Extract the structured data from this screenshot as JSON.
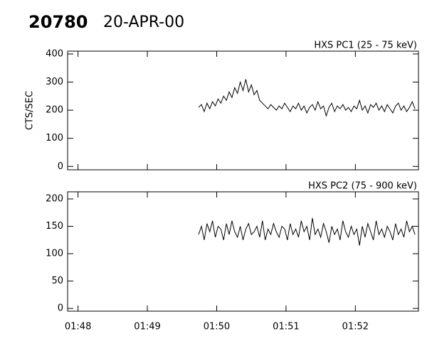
{
  "header": {
    "id": "20780",
    "date": "20-APR-00"
  },
  "chart_data": [
    {
      "type": "line",
      "title": "HXS PC1 (25 - 75 keV)",
      "y_label": "CTS/SEC",
      "color": "#000000",
      "x": [
        109.74,
        109.78,
        109.82,
        109.86,
        109.9,
        109.94,
        109.98,
        110.02,
        110.06,
        110.1,
        110.14,
        110.18,
        110.22,
        110.26,
        110.3,
        110.34,
        110.38,
        110.42,
        110.46,
        110.5,
        110.54,
        110.58,
        110.62,
        110.66,
        110.7,
        110.74,
        110.78,
        110.82,
        110.86,
        110.9,
        110.94,
        110.98,
        111.02,
        111.06,
        111.1,
        111.14,
        111.18,
        111.22,
        111.26,
        111.3,
        111.34,
        111.38,
        111.42,
        111.46,
        111.5,
        111.54,
        111.58,
        111.62,
        111.66,
        111.7,
        111.74,
        111.78,
        111.82,
        111.86,
        111.9,
        111.94,
        111.98,
        112.02,
        112.06,
        112.1,
        112.14,
        112.18,
        112.22,
        112.26,
        112.3,
        112.34,
        112.38,
        112.42,
        112.46,
        112.5,
        112.54,
        112.58,
        112.62,
        112.66,
        112.7,
        112.74,
        112.78,
        112.82,
        112.86
      ],
      "values": [
        210,
        220,
        195,
        225,
        205,
        230,
        215,
        240,
        225,
        250,
        235,
        265,
        245,
        280,
        260,
        300,
        270,
        310,
        265,
        290,
        255,
        270,
        235,
        225,
        215,
        205,
        220,
        210,
        200,
        215,
        205,
        225,
        210,
        195,
        215,
        205,
        225,
        200,
        215,
        190,
        210,
        220,
        200,
        230,
        205,
        215,
        180,
        210,
        225,
        195,
        215,
        205,
        220,
        200,
        210,
        195,
        215,
        205,
        235,
        200,
        215,
        190,
        220,
        210,
        225,
        200,
        215,
        195,
        220,
        205,
        190,
        215,
        225,
        200,
        215,
        195,
        210,
        230,
        205
      ],
      "xlim": [
        107.85,
        112.91
      ],
      "xticks": [
        108,
        109,
        110,
        111,
        112
      ],
      "ylim": [
        -12,
        410
      ],
      "yticks": [
        0,
        100,
        200,
        300,
        400
      ]
    },
    {
      "type": "line",
      "title": "HXS PC2 (75 - 900 keV)",
      "color": "#000000",
      "x": [
        109.74,
        109.78,
        109.82,
        109.86,
        109.9,
        109.94,
        109.98,
        110.02,
        110.06,
        110.1,
        110.14,
        110.18,
        110.22,
        110.26,
        110.3,
        110.34,
        110.38,
        110.42,
        110.46,
        110.5,
        110.54,
        110.58,
        110.62,
        110.66,
        110.7,
        110.74,
        110.78,
        110.82,
        110.86,
        110.9,
        110.94,
        110.98,
        111.02,
        111.06,
        111.1,
        111.14,
        111.18,
        111.22,
        111.26,
        111.3,
        111.34,
        111.38,
        111.42,
        111.46,
        111.5,
        111.54,
        111.58,
        111.62,
        111.66,
        111.7,
        111.74,
        111.78,
        111.82,
        111.86,
        111.9,
        111.94,
        111.98,
        112.02,
        112.06,
        112.1,
        112.14,
        112.18,
        112.22,
        112.26,
        112.3,
        112.34,
        112.38,
        112.42,
        112.46,
        112.5,
        112.54,
        112.58,
        112.62,
        112.66,
        112.7,
        112.74,
        112.78,
        112.82,
        112.86
      ],
      "values": [
        135,
        150,
        125,
        155,
        140,
        160,
        130,
        150,
        145,
        125,
        155,
        135,
        160,
        140,
        130,
        150,
        125,
        145,
        155,
        135,
        140,
        150,
        130,
        160,
        125,
        145,
        135,
        155,
        140,
        130,
        150,
        145,
        125,
        155,
        135,
        145,
        130,
        160,
        140,
        150,
        125,
        165,
        135,
        145,
        130,
        155,
        140,
        120,
        150,
        135,
        145,
        125,
        160,
        140,
        130,
        150,
        135,
        145,
        115,
        150,
        130,
        155,
        140,
        125,
        160,
        135,
        145,
        130,
        150,
        140,
        125,
        155,
        135,
        145,
        130,
        160,
        140,
        150,
        135
      ],
      "xlim": [
        107.85,
        112.91
      ],
      "xticks": [
        {
          "value": 108,
          "label": "01:48"
        },
        {
          "value": 109,
          "label": "01:49"
        },
        {
          "value": 110,
          "label": "01:50"
        },
        {
          "value": 111,
          "label": "01:51"
        },
        {
          "value": 112,
          "label": "01:52"
        }
      ],
      "ylim": [
        -5,
        213
      ],
      "yticks": [
        0,
        50,
        100,
        150,
        200
      ]
    }
  ]
}
